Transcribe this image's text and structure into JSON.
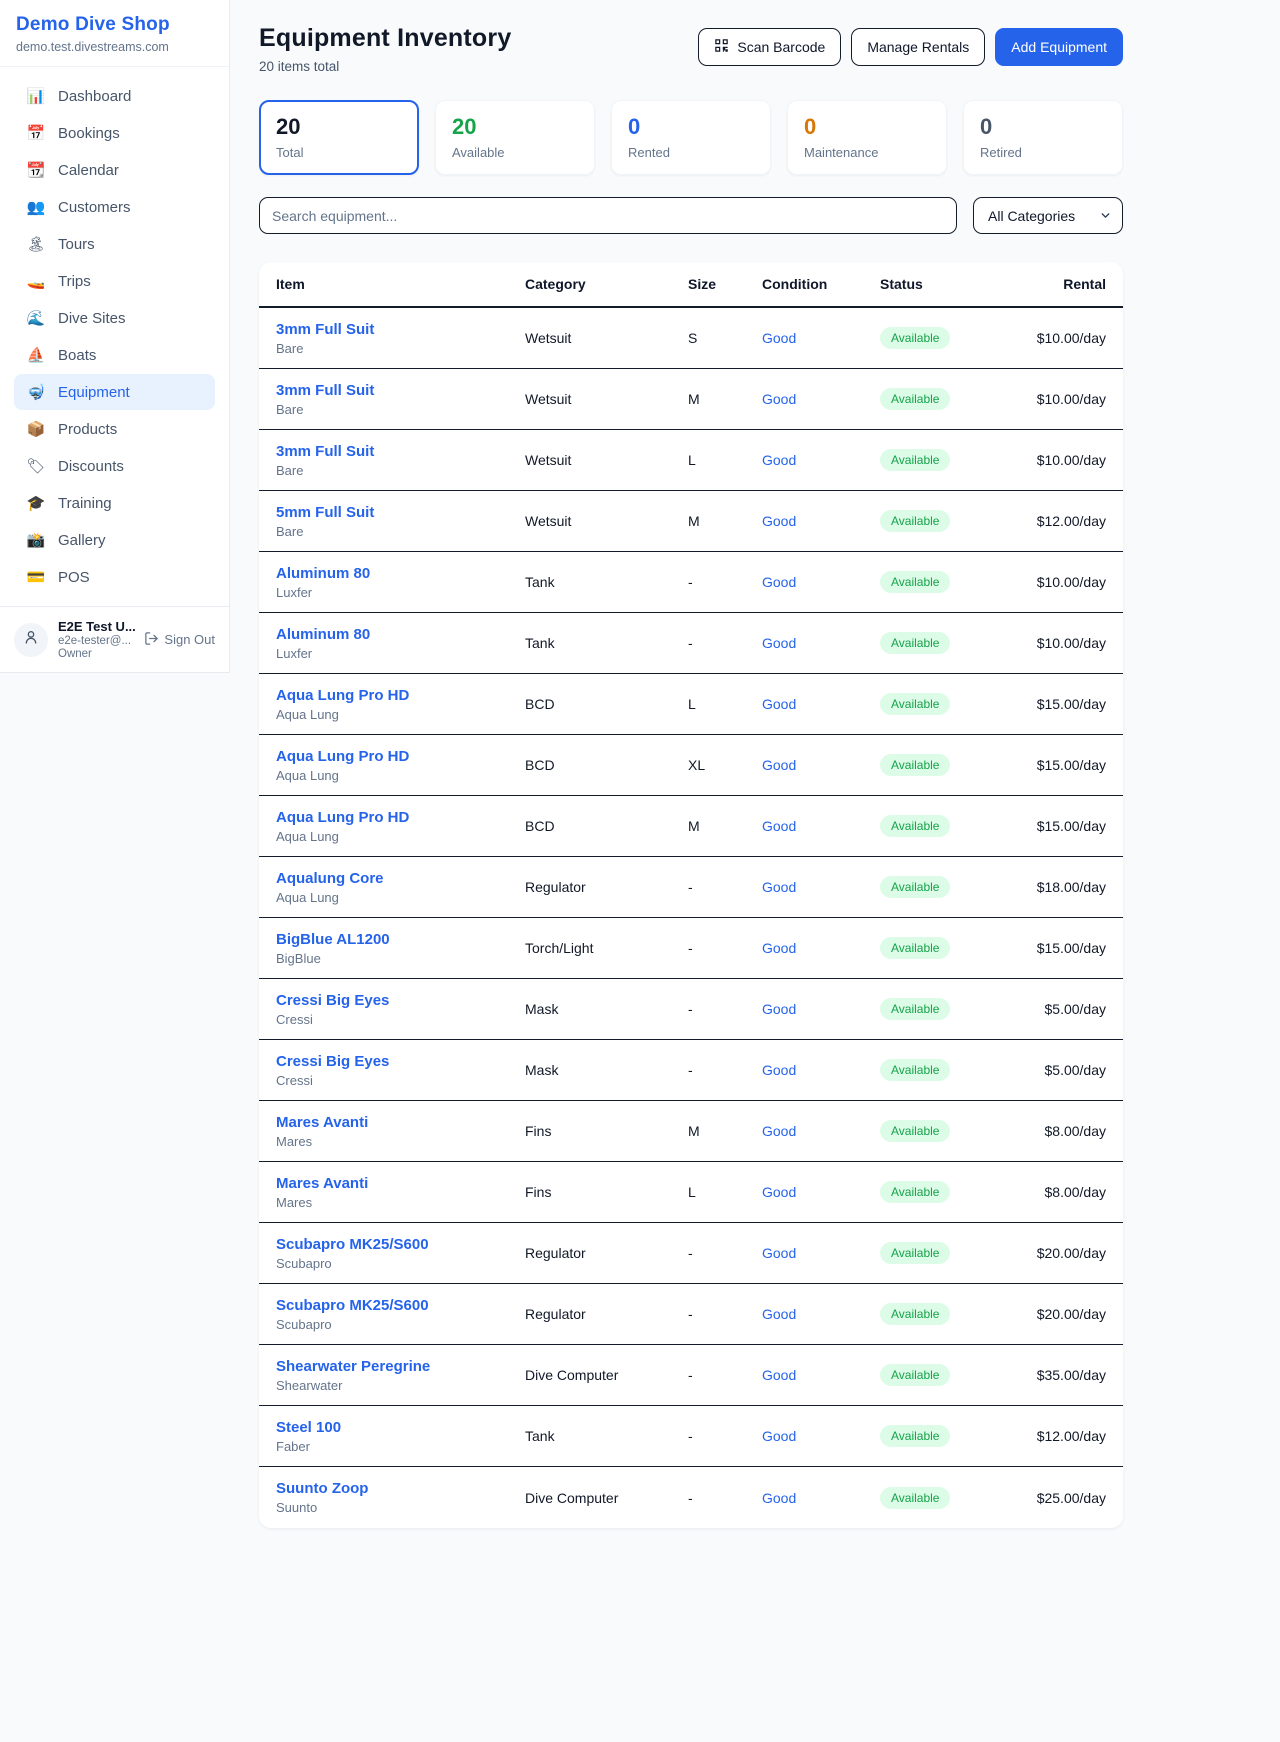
{
  "colors": {
    "accent": "#2563eb",
    "green": "#16a34a",
    "orange": "#d97706",
    "gray": "#475569",
    "dark": "#111827",
    "page_bg": "#f8fafc",
    "status_pill_bg": "#dcfce7"
  },
  "sidebar": {
    "brand": "Demo Dive Shop",
    "domain": "demo.test.divestreams.com",
    "items": [
      {
        "icon": "📊",
        "icon_name": "bar-chart-icon",
        "label": "Dashboard",
        "active": false
      },
      {
        "icon": "📅",
        "icon_name": "calendar-date-icon",
        "label": "Bookings",
        "active": false
      },
      {
        "icon": "📆",
        "icon_name": "tear-off-calendar-icon",
        "label": "Calendar",
        "active": false
      },
      {
        "icon": "👥",
        "icon_name": "people-icon",
        "label": "Customers",
        "active": false
      },
      {
        "icon": "🏝",
        "icon_name": "island-icon",
        "label": "Tours",
        "active": false
      },
      {
        "icon": "🚤",
        "icon_name": "speedboat-icon",
        "label": "Trips",
        "active": false
      },
      {
        "icon": "🌊",
        "icon_name": "wave-icon",
        "label": "Dive Sites",
        "active": false
      },
      {
        "icon": "⛵",
        "icon_name": "sailboat-icon",
        "label": "Boats",
        "active": false
      },
      {
        "icon": "🤿",
        "icon_name": "diving-mask-icon",
        "label": "Equipment",
        "active": true
      },
      {
        "icon": "📦",
        "icon_name": "package-icon",
        "label": "Products",
        "active": false
      },
      {
        "icon": "🏷",
        "icon_name": "price-tag-icon",
        "label": "Discounts",
        "active": false
      },
      {
        "icon": "🎓",
        "icon_name": "graduation-cap-icon",
        "label": "Training",
        "active": false
      },
      {
        "icon": "📸",
        "icon_name": "camera-icon",
        "label": "Gallery",
        "active": false
      },
      {
        "icon": "💳",
        "icon_name": "credit-card-icon",
        "label": "POS",
        "active": false
      }
    ],
    "user": {
      "name": "E2E Test U...",
      "email": "e2e-tester@...",
      "role": "Owner",
      "sign_out_label": "Sign Out"
    }
  },
  "header": {
    "title": "Equipment Inventory",
    "subtitle": "20 items total",
    "scan_barcode_label": "Scan Barcode",
    "manage_rentals_label": "Manage Rentals",
    "add_equipment_label": "Add Equipment"
  },
  "stats": [
    {
      "value": "20",
      "label": "Total",
      "color": "#111827",
      "selected": true
    },
    {
      "value": "20",
      "label": "Available",
      "color": "#16a34a",
      "selected": false
    },
    {
      "value": "0",
      "label": "Rented",
      "color": "#2563eb",
      "selected": false
    },
    {
      "value": "0",
      "label": "Maintenance",
      "color": "#d97706",
      "selected": false
    },
    {
      "value": "0",
      "label": "Retired",
      "color": "#475569",
      "selected": false
    }
  ],
  "filters": {
    "search_placeholder": "Search equipment...",
    "category_value": "All Categories"
  },
  "table": {
    "columns": [
      "Item",
      "Category",
      "Size",
      "Condition",
      "Status",
      "Rental"
    ],
    "rows": [
      {
        "name": "3mm Full Suit",
        "brand": "Bare",
        "category": "Wetsuit",
        "size": "S",
        "condition": "Good",
        "status": "Available",
        "rental": "$10.00/day"
      },
      {
        "name": "3mm Full Suit",
        "brand": "Bare",
        "category": "Wetsuit",
        "size": "M",
        "condition": "Good",
        "status": "Available",
        "rental": "$10.00/day"
      },
      {
        "name": "3mm Full Suit",
        "brand": "Bare",
        "category": "Wetsuit",
        "size": "L",
        "condition": "Good",
        "status": "Available",
        "rental": "$10.00/day"
      },
      {
        "name": "5mm Full Suit",
        "brand": "Bare",
        "category": "Wetsuit",
        "size": "M",
        "condition": "Good",
        "status": "Available",
        "rental": "$12.00/day"
      },
      {
        "name": "Aluminum 80",
        "brand": "Luxfer",
        "category": "Tank",
        "size": "-",
        "condition": "Good",
        "status": "Available",
        "rental": "$10.00/day"
      },
      {
        "name": "Aluminum 80",
        "brand": "Luxfer",
        "category": "Tank",
        "size": "-",
        "condition": "Good",
        "status": "Available",
        "rental": "$10.00/day"
      },
      {
        "name": "Aqua Lung Pro HD",
        "brand": "Aqua Lung",
        "category": "BCD",
        "size": "L",
        "condition": "Good",
        "status": "Available",
        "rental": "$15.00/day"
      },
      {
        "name": "Aqua Lung Pro HD",
        "brand": "Aqua Lung",
        "category": "BCD",
        "size": "XL",
        "condition": "Good",
        "status": "Available",
        "rental": "$15.00/day"
      },
      {
        "name": "Aqua Lung Pro HD",
        "brand": "Aqua Lung",
        "category": "BCD",
        "size": "M",
        "condition": "Good",
        "status": "Available",
        "rental": "$15.00/day"
      },
      {
        "name": "Aqualung Core",
        "brand": "Aqua Lung",
        "category": "Regulator",
        "size": "-",
        "condition": "Good",
        "status": "Available",
        "rental": "$18.00/day"
      },
      {
        "name": "BigBlue AL1200",
        "brand": "BigBlue",
        "category": "Torch/Light",
        "size": "-",
        "condition": "Good",
        "status": "Available",
        "rental": "$15.00/day"
      },
      {
        "name": "Cressi Big Eyes",
        "brand": "Cressi",
        "category": "Mask",
        "size": "-",
        "condition": "Good",
        "status": "Available",
        "rental": "$5.00/day"
      },
      {
        "name": "Cressi Big Eyes",
        "brand": "Cressi",
        "category": "Mask",
        "size": "-",
        "condition": "Good",
        "status": "Available",
        "rental": "$5.00/day"
      },
      {
        "name": "Mares Avanti",
        "brand": "Mares",
        "category": "Fins",
        "size": "M",
        "condition": "Good",
        "status": "Available",
        "rental": "$8.00/day"
      },
      {
        "name": "Mares Avanti",
        "brand": "Mares",
        "category": "Fins",
        "size": "L",
        "condition": "Good",
        "status": "Available",
        "rental": "$8.00/day"
      },
      {
        "name": "Scubapro MK25/S600",
        "brand": "Scubapro",
        "category": "Regulator",
        "size": "-",
        "condition": "Good",
        "status": "Available",
        "rental": "$20.00/day"
      },
      {
        "name": "Scubapro MK25/S600",
        "brand": "Scubapro",
        "category": "Regulator",
        "size": "-",
        "condition": "Good",
        "status": "Available",
        "rental": "$20.00/day"
      },
      {
        "name": "Shearwater Peregrine",
        "brand": "Shearwater",
        "category": "Dive Computer",
        "size": "-",
        "condition": "Good",
        "status": "Available",
        "rental": "$35.00/day"
      },
      {
        "name": "Steel 100",
        "brand": "Faber",
        "category": "Tank",
        "size": "-",
        "condition": "Good",
        "status": "Available",
        "rental": "$12.00/day"
      },
      {
        "name": "Suunto Zoop",
        "brand": "Suunto",
        "category": "Dive Computer",
        "size": "-",
        "condition": "Good",
        "status": "Available",
        "rental": "$25.00/day"
      }
    ]
  }
}
